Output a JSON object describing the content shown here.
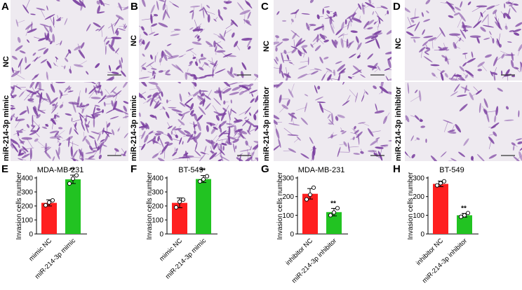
{
  "panel_letters": [
    "A",
    "B",
    "C",
    "D",
    "E",
    "F",
    "G",
    "H"
  ],
  "micrographs": [
    {
      "panel": "A",
      "top_label": "NC",
      "bottom_label": "miR-214-3p mimic"
    },
    {
      "panel": "B",
      "top_label": "NC",
      "bottom_label": "miR-214-3p mimic"
    },
    {
      "panel": "C",
      "top_label": "NC",
      "bottom_label": "miR-214-3p inhibitor"
    },
    {
      "panel": "D",
      "top_label": "NC",
      "bottom_label": "miR-214-3p inhibitor"
    }
  ],
  "colors": {
    "control": "#ff1f1f",
    "treatment": "#22c322",
    "stain": "#7a3fa0",
    "background": "#eeeaf0"
  },
  "chart_data": [
    {
      "panel": "E",
      "type": "bar",
      "title": "MDA-MB-231",
      "ylabel": "Invasion cells number",
      "categories": [
        "mimic NC",
        "miR-214-3p mimic"
      ],
      "values": [
        222,
        390
      ],
      "errors": [
        22,
        30
      ],
      "points": [
        [
          205,
          225,
          240
        ],
        [
          360,
          395,
          418
        ]
      ],
      "ylim": [
        0,
        400
      ],
      "yticks": [
        0,
        100,
        200,
        300,
        400
      ],
      "significance": "**"
    },
    {
      "panel": "F",
      "type": "bar",
      "title": "BT-549",
      "ylabel": "Invasion cells number",
      "categories": [
        "mimic NC",
        "miR-214-3p mimic"
      ],
      "values": [
        222,
        392
      ],
      "errors": [
        35,
        25
      ],
      "points": [
        [
          190,
          230,
          245
        ],
        [
          375,
          390,
          412
        ]
      ],
      "ylim": [
        0,
        400
      ],
      "yticks": [
        0,
        100,
        200,
        300,
        400
      ],
      "significance": "**"
    },
    {
      "panel": "G",
      "type": "bar",
      "title": "MDA-MB-231",
      "ylabel": "Invasion cells number",
      "categories": [
        "inhibitor NC",
        "miR-214-3p inhibitor"
      ],
      "values": [
        215,
        117
      ],
      "errors": [
        28,
        20
      ],
      "points": [
        [
          185,
          210,
          248
        ],
        [
          100,
          115,
          138
        ]
      ],
      "ylim": [
        0,
        300
      ],
      "yticks": [
        0,
        100,
        200,
        300
      ],
      "significance": "**"
    },
    {
      "panel": "H",
      "type": "bar",
      "title": "BT-549",
      "ylabel": "Invasion cells number",
      "categories": [
        "inhibitor NC",
        "miR-214-3p inhibitor"
      ],
      "values": [
        268,
        100
      ],
      "errors": [
        15,
        10
      ],
      "points": [
        [
          260,
          272,
          282
        ],
        [
          92,
          100,
          112
        ]
      ],
      "ylim": [
        0,
        300
      ],
      "yticks": [
        0,
        100,
        200,
        300
      ],
      "significance": "**"
    }
  ]
}
